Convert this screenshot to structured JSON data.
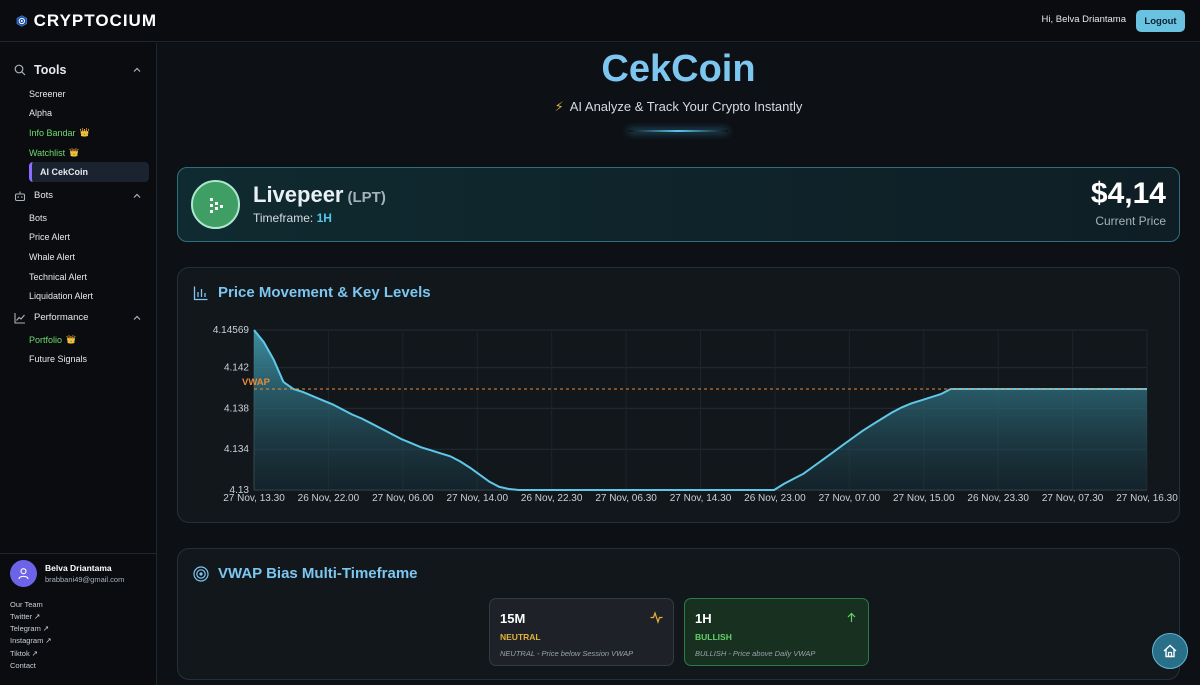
{
  "brand": {
    "name": "CRYPTOCIUM"
  },
  "header": {
    "greeting": "Hi, Belva Driantama",
    "logout_label": "Logout"
  },
  "sidebar": {
    "tools": {
      "label": "Tools",
      "items": [
        {
          "label": "Screener"
        },
        {
          "label": "Alpha"
        },
        {
          "label": "Info Bandar"
        },
        {
          "label": "Watchlist"
        },
        {
          "label": "AI CekCoin"
        }
      ]
    },
    "bots": {
      "label": "Bots",
      "items": [
        {
          "label": "Bots"
        },
        {
          "label": "Price Alert"
        },
        {
          "label": "Whale Alert"
        },
        {
          "label": "Technical Alert"
        },
        {
          "label": "Liquidation Alert"
        }
      ]
    },
    "performance": {
      "label": "Performance",
      "items": [
        {
          "label": "Portfolio"
        },
        {
          "label": "Future Signals"
        }
      ]
    },
    "crown_glyph": "👑"
  },
  "profile": {
    "name": "Belva Driantama",
    "email": "brabbani49@gmail.com"
  },
  "footer_links": [
    "Our Team",
    "Twitter ↗",
    "Telegram ↗",
    "Instagram ↗",
    "Tiktok ↗",
    "Contact"
  ],
  "hero": {
    "title": "CekCoin",
    "subtitle": "AI Analyze & Track Your Crypto Instantly",
    "bolt_glyph": "⚡"
  },
  "coin": {
    "name": "Livepeer",
    "symbol": "(LPT)",
    "timeframe_label": "Timeframe:",
    "timeframe": "1H",
    "price": "$4,14",
    "price_label": "Current Price"
  },
  "chart_card": {
    "title": "Price Movement & Key Levels"
  },
  "chart_data": {
    "type": "area",
    "title": "Price Movement & Key Levels",
    "x_ticks": [
      "27 Nov, 13.30",
      "26 Nov, 22.00",
      "27 Nov, 06.00",
      "27 Nov, 14.00",
      "26 Nov, 22.30",
      "27 Nov, 06.30",
      "27 Nov, 14.30",
      "26 Nov, 23.00",
      "27 Nov, 07.00",
      "27 Nov, 15.00",
      "26 Nov, 23.30",
      "27 Nov, 07.30",
      "27 Nov, 16.30"
    ],
    "y_ticks": [
      "4.14569",
      "4.142",
      "4.138",
      "4.134",
      "4.13"
    ],
    "y_tick_values": [
      4.14569,
      4.142,
      4.138,
      4.134,
      4.13
    ],
    "ylim": [
      4.13,
      4.14569
    ],
    "vwap": {
      "label": "VWAP",
      "value": 4.1399
    },
    "series": [
      {
        "values": [
          4.14569,
          4.1445,
          4.1428,
          4.1406,
          4.1399,
          4.1396,
          4.1392,
          4.1388,
          4.1384,
          4.1379,
          4.1374,
          4.137,
          4.1365,
          4.136,
          4.1355,
          4.135,
          4.1346,
          4.1342,
          4.1339,
          4.1336,
          4.1333,
          4.1328,
          4.1322,
          4.1315,
          4.1308,
          4.1303,
          4.1301,
          4.13,
          4.13,
          4.13,
          4.13,
          4.13,
          4.13,
          4.13,
          4.13,
          4.13,
          4.13,
          4.13,
          4.13,
          4.13,
          4.13,
          4.13,
          4.13,
          4.13,
          4.13,
          4.13,
          4.13,
          4.13,
          4.13,
          4.13,
          4.13,
          4.13,
          4.13,
          4.13,
          4.1306,
          4.1311,
          4.1316,
          4.1323,
          4.133,
          4.1337,
          4.1344,
          4.1351,
          4.1358,
          4.1364,
          4.137,
          4.1376,
          4.1381,
          4.1385,
          4.1388,
          4.1391,
          4.1394,
          4.1399,
          4.1399,
          4.1399,
          4.1399,
          4.1399,
          4.1399,
          4.1399,
          4.1399,
          4.1399,
          4.1399,
          4.1399,
          4.1399,
          4.1399,
          4.1399,
          4.1399,
          4.1399,
          4.1399,
          4.1399,
          4.1399,
          4.1399,
          4.1399
        ]
      }
    ],
    "colors": {
      "line": "#5fc8e8",
      "vwap": "#e88b3a"
    }
  },
  "vwap_card": {
    "title": "VWAP Bias Multi-Timeframe",
    "items": [
      {
        "tf": "15M",
        "status": "NEUTRAL",
        "desc": "NEUTRAL - Price below Session VWAP"
      },
      {
        "tf": "1H",
        "status": "BULLISH",
        "desc": "BULLISH - Price above Daily VWAP"
      }
    ]
  }
}
